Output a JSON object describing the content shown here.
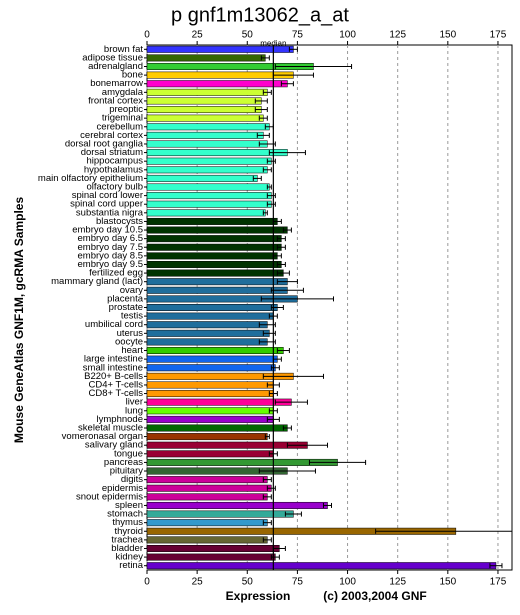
{
  "chart_data": {
    "type": "hbar",
    "title": "p gnf1m13062_a_at",
    "y_label": "Mouse GeneAtlas GNF1M, gcRMA Samples",
    "x_label": "Expression",
    "credit": "(c) 2003,2004 GNF",
    "median_label": "median",
    "median": 63,
    "xlim": [
      0,
      182
    ],
    "xticks": [
      0,
      25,
      50,
      75,
      100,
      125,
      150,
      175
    ],
    "grid": true,
    "categories": [
      "brown fat",
      "adipose tissue",
      "adrenalgland",
      "bone",
      "bonemarrow",
      "amygdala",
      "frontal cortex",
      "preoptic",
      "trigeminal",
      "cerebellum",
      "cerebral cortex",
      "dorsal root ganglia",
      "dorsal striatum",
      "hippocampus",
      "hypothalamus",
      "main olfactory epithelium",
      "olfactory bulb",
      "spinal cord lower",
      "spinal cord upper",
      "substantia nigra",
      "blastocysts",
      "embryo day 10.5",
      "embryo day 6.5",
      "embryo day 7.5",
      "embryo day 8.5",
      "embryo day 9.5",
      "fertilized egg",
      "mammary gland (lact)",
      "ovary",
      "placenta",
      "prostate",
      "testis",
      "umbilical cord",
      "uterus",
      "oocyte",
      "heart",
      "large intestine",
      "small intestine",
      "B220+ B-cells",
      "CD4+ T-cells",
      "CD8+ T-cells",
      "liver",
      "lung",
      "lymphnode",
      "skeletal muscle",
      "vomeronasal organ",
      "salivary gland",
      "tongue",
      "pancreas",
      "pituitary",
      "digits",
      "epidermis",
      "snout epidermis",
      "spleen",
      "stomach",
      "thymus",
      "thyroid",
      "trachea",
      "bladder",
      "kidney",
      "retina"
    ],
    "values": [
      73,
      59,
      83,
      73,
      70,
      60,
      57,
      57,
      58,
      61,
      58,
      60,
      70,
      62,
      60,
      55,
      61,
      62,
      62,
      59,
      65,
      70,
      67,
      67,
      65,
      67,
      68,
      70,
      70,
      75,
      65,
      63,
      60,
      61,
      60,
      68,
      65,
      64,
      73,
      63,
      63,
      72,
      63,
      63,
      70,
      60,
      80,
      63,
      95,
      70,
      60,
      62,
      60,
      90,
      73,
      60,
      154,
      60,
      66,
      64,
      174
    ],
    "errors": [
      2,
      2,
      19,
      10,
      3,
      2,
      3,
      3,
      2,
      2,
      3,
      4,
      9,
      2,
      2,
      2,
      1,
      2,
      2,
      1,
      2,
      2,
      2,
      2,
      2,
      2,
      3,
      5,
      8,
      18,
      3,
      2,
      4,
      3,
      4,
      3,
      2,
      2,
      15,
      3,
      2,
      8,
      2,
      3,
      2,
      1,
      10,
      2,
      14,
      14,
      2,
      2,
      2,
      2,
      4,
      2,
      40,
      2,
      3,
      2,
      3
    ],
    "colors": [
      "#3333ff",
      "#336600",
      "#33cc33",
      "#ffcc00",
      "#ff00cc",
      "#ccff33",
      "#ccff33",
      "#ccff33",
      "#ccff33",
      "#33ffcc",
      "#33ffcc",
      "#33ffcc",
      "#33ffcc",
      "#33ffcc",
      "#33ffcc",
      "#33ffcc",
      "#33ffcc",
      "#33ffcc",
      "#33ffcc",
      "#33ffcc",
      "#003300",
      "#003300",
      "#003300",
      "#003300",
      "#003300",
      "#003300",
      "#003300",
      "#1f6e9c",
      "#1f6e9c",
      "#1f6e9c",
      "#1f6e9c",
      "#1f6e9c",
      "#1f6e9c",
      "#1f6e9c",
      "#1f6e9c",
      "#33cc00",
      "#1166ee",
      "#1166ee",
      "#ff9900",
      "#ff9900",
      "#ff9900",
      "#ff0099",
      "#66ff00",
      "#9900cc",
      "#006600",
      "#993300",
      "#990033",
      "#990033",
      "#339933",
      "#336633",
      "#cc0099",
      "#cc0099",
      "#cc0099",
      "#9900cc",
      "#33aa99",
      "#3399cc",
      "#996600",
      "#666633",
      "#660033",
      "#660033",
      "#6600cc"
    ]
  }
}
